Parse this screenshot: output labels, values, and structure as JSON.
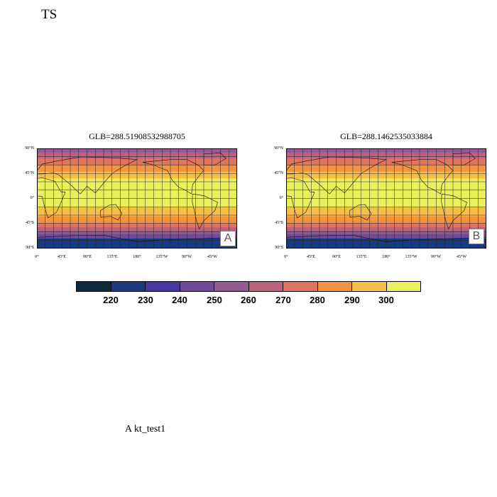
{
  "title": "TS",
  "panels": [
    {
      "title": "GLB=288.51908532988705",
      "letter": "A"
    },
    {
      "title": "GLB=288.1462535033884",
      "letter": "B"
    }
  ],
  "lat_labels": [
    "90°N",
    "45°N",
    "0°",
    "45°S",
    "90°S"
  ],
  "lon_labels": [
    "0°",
    "45°E",
    "90°E",
    "135°E",
    "180°",
    "135°W",
    "90°W",
    "45°W"
  ],
  "colorbar": {
    "colors": [
      "#0b2a3a",
      "#173a80",
      "#46389e",
      "#6e4a98",
      "#935a93",
      "#bd617c",
      "#e0745c",
      "#f2953e",
      "#f6c048",
      "#e8f060"
    ],
    "ticks": [
      "220",
      "230",
      "240",
      "250",
      "260",
      "270",
      "280",
      "290",
      "300"
    ]
  },
  "footer": "A  kt_test1"
}
